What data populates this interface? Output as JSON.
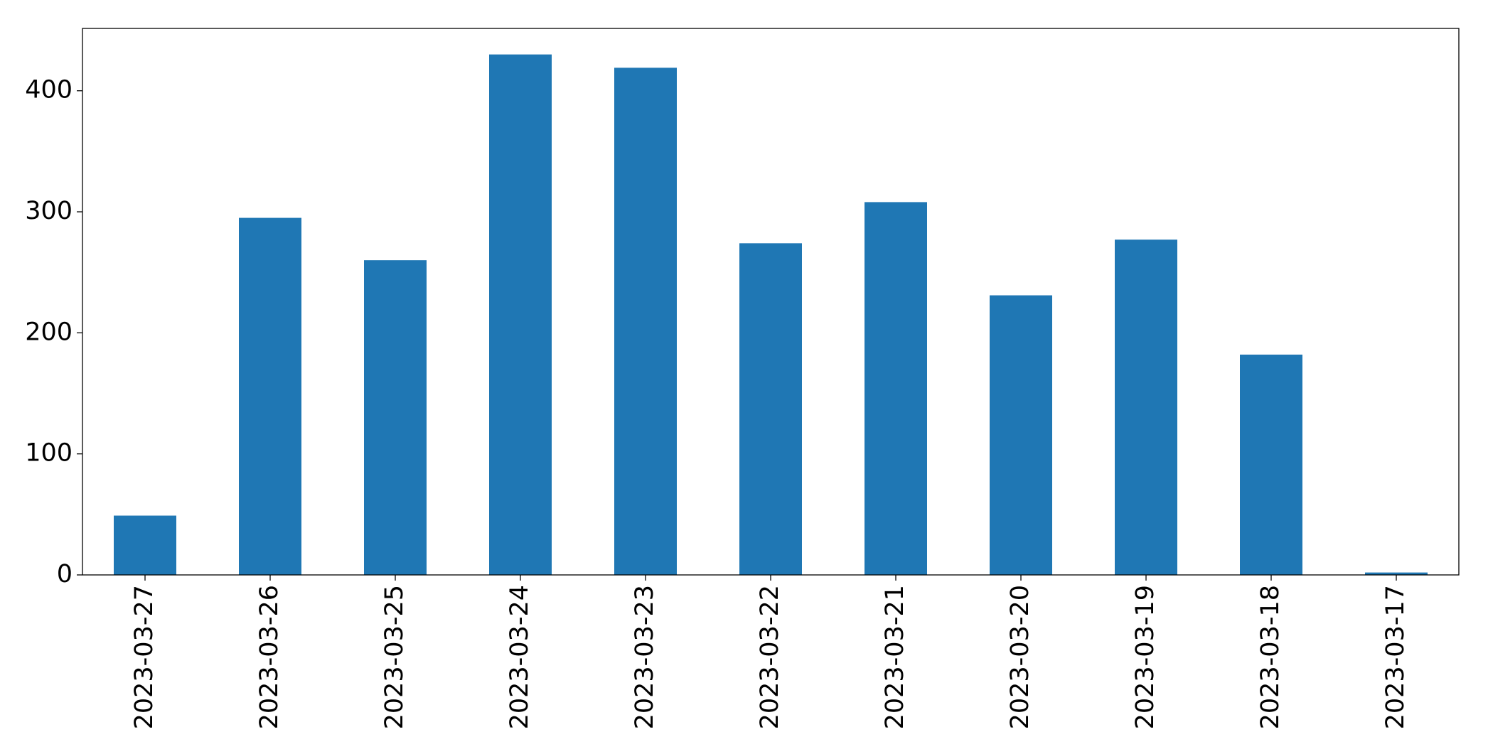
{
  "chart_data": {
    "type": "bar",
    "categories": [
      "2023-03-27",
      "2023-03-26",
      "2023-03-25",
      "2023-03-24",
      "2023-03-23",
      "2023-03-22",
      "2023-03-21",
      "2023-03-20",
      "2023-03-19",
      "2023-03-18",
      "2023-03-17"
    ],
    "values": [
      49,
      295,
      260,
      430,
      419,
      274,
      308,
      231,
      277,
      182,
      2
    ],
    "color": "#1f77b4",
    "ylim": [
      0,
      451.5
    ],
    "yticks": [
      0,
      100,
      200,
      300,
      400
    ],
    "grid": false
  }
}
